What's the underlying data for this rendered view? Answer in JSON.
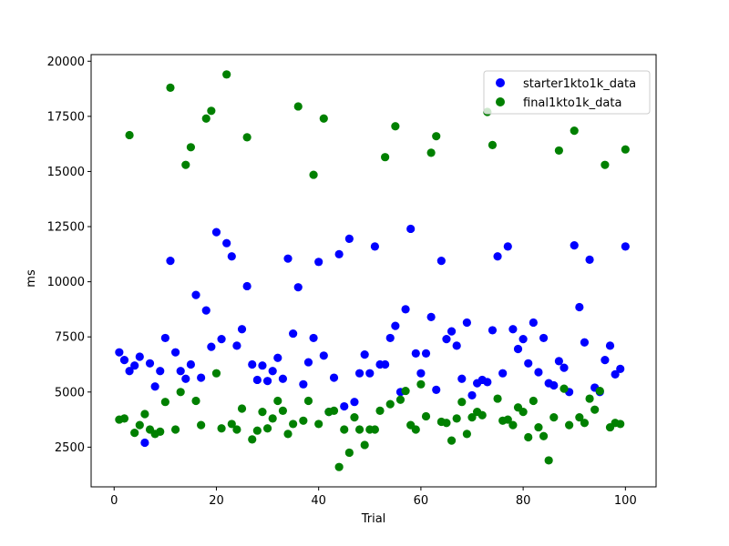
{
  "chart_data": {
    "type": "scatter",
    "title": "",
    "xlabel": "Trial",
    "ylabel": "ms",
    "xlim": [
      -4.5,
      106
    ],
    "ylim": [
      700,
      20300
    ],
    "xticks": [
      0,
      20,
      40,
      60,
      80,
      100
    ],
    "yticks": [
      2500,
      5000,
      7500,
      10000,
      12500,
      15000,
      17500,
      20000
    ],
    "grid": false,
    "legend_position": "top-right",
    "series": [
      {
        "name": "starter1kto1k_data",
        "color": "#0000ff",
        "x": [
          1,
          2,
          3,
          4,
          5,
          6,
          7,
          8,
          9,
          10,
          11,
          12,
          13,
          14,
          15,
          16,
          17,
          18,
          19,
          20,
          21,
          22,
          23,
          24,
          25,
          26,
          27,
          28,
          29,
          30,
          31,
          32,
          33,
          34,
          35,
          36,
          37,
          38,
          39,
          40,
          41,
          42,
          43,
          44,
          45,
          46,
          47,
          48,
          49,
          50,
          51,
          52,
          53,
          54,
          55,
          56,
          57,
          58,
          59,
          60,
          61,
          62,
          63,
          64,
          65,
          66,
          67,
          68,
          69,
          70,
          71,
          72,
          73,
          74,
          75,
          76,
          77,
          78,
          79,
          80,
          81,
          82,
          83,
          84,
          85,
          86,
          87,
          88,
          89,
          90,
          91,
          92,
          93,
          94,
          95,
          96,
          97,
          98,
          99,
          100
        ],
        "y": [
          6800,
          6450,
          5950,
          6200,
          6600,
          2700,
          6300,
          5250,
          5950,
          7450,
          10950,
          6800,
          5950,
          5600,
          6250,
          9400,
          5650,
          8700,
          7050,
          12250,
          7400,
          11750,
          11150,
          7100,
          7850,
          9800,
          6250,
          5550,
          6200,
          5500,
          5950,
          6550,
          5600,
          11050,
          7650,
          9750,
          5350,
          6350,
          7450,
          10900,
          6650,
          4100,
          5650,
          11250,
          4350,
          11950,
          4550,
          5850,
          6700,
          5850,
          11600,
          6250,
          6250,
          7450,
          8000,
          5000,
          8750,
          12400,
          6750,
          5850,
          6750,
          8400,
          5100,
          10950,
          7400,
          7750,
          7100,
          5600,
          8150,
          4850,
          5400,
          5550,
          5450,
          7800,
          11150,
          5850,
          11600,
          7850,
          6950,
          7400,
          6300,
          8150,
          5900,
          7450,
          5400,
          5300,
          6400,
          6100,
          5000,
          11650,
          8850,
          7250,
          11000,
          5200,
          5000,
          6450,
          7100,
          5800,
          6050,
          11600
        ]
      },
      {
        "name": "final1kto1k_data",
        "color": "#008000",
        "x": [
          1,
          2,
          3,
          4,
          5,
          6,
          7,
          8,
          9,
          10,
          11,
          12,
          13,
          14,
          15,
          16,
          17,
          18,
          19,
          20,
          21,
          22,
          23,
          24,
          25,
          26,
          27,
          28,
          29,
          30,
          31,
          32,
          33,
          34,
          35,
          36,
          37,
          38,
          39,
          40,
          41,
          42,
          43,
          44,
          45,
          46,
          47,
          48,
          49,
          50,
          51,
          52,
          53,
          54,
          55,
          56,
          57,
          58,
          59,
          60,
          61,
          62,
          63,
          64,
          65,
          66,
          67,
          68,
          69,
          70,
          71,
          72,
          73,
          74,
          75,
          76,
          77,
          78,
          79,
          80,
          81,
          82,
          83,
          84,
          85,
          86,
          87,
          88,
          89,
          90,
          91,
          92,
          93,
          94,
          95,
          96,
          97,
          98,
          99,
          100
        ],
        "y": [
          3750,
          3800,
          16650,
          3150,
          3500,
          4000,
          3300,
          3100,
          3200,
          4550,
          18800,
          3300,
          5000,
          15300,
          16100,
          4600,
          3500,
          17400,
          17750,
          5850,
          3350,
          19400,
          3550,
          3300,
          4250,
          16550,
          2850,
          3250,
          4100,
          3350,
          3800,
          4600,
          4150,
          3100,
          3550,
          17950,
          3700,
          4600,
          14850,
          3550,
          17400,
          4100,
          4150,
          1600,
          3300,
          2250,
          3850,
          3300,
          2600,
          3300,
          3300,
          4150,
          15650,
          4450,
          17050,
          4650,
          5050,
          3500,
          3300,
          5350,
          3900,
          15850,
          16600,
          3650,
          3600,
          2800,
          3800,
          4550,
          3100,
          3850,
          4100,
          3950,
          17700,
          16200,
          4700,
          3700,
          3750,
          3500,
          4300,
          4100,
          2950,
          4600,
          3400,
          3000,
          1900,
          3850,
          15950,
          5150,
          3500,
          16850,
          3850,
          3600,
          4700,
          4200,
          5050,
          15300,
          3400,
          3600,
          3550,
          16000
        ]
      }
    ]
  }
}
